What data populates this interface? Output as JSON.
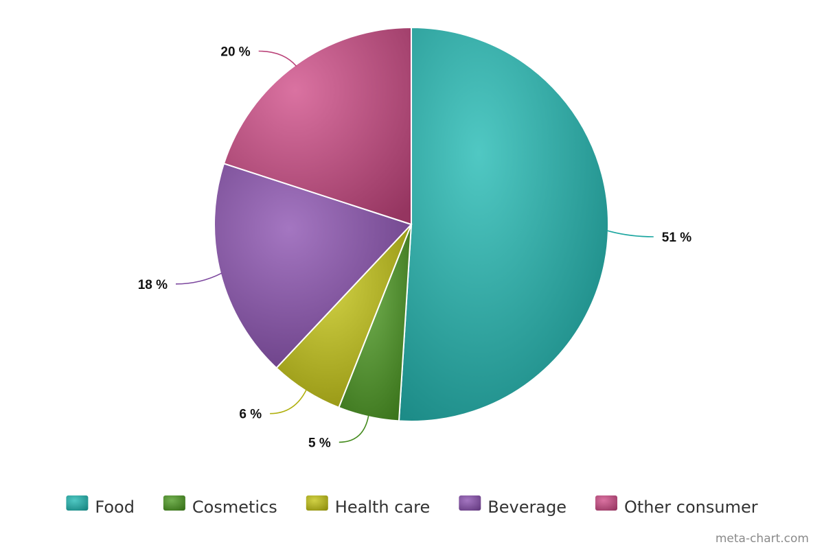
{
  "chart_data": {
    "type": "pie",
    "title": "",
    "categories": [
      "Food",
      "Cosmetics",
      "Health care",
      "Beverage",
      "Other consumer"
    ],
    "values": [
      51,
      5,
      6,
      18,
      20
    ],
    "value_labels": [
      "51 %",
      "5 %",
      "6 %",
      "18 %",
      "20 %"
    ],
    "colors": [
      "#1fb8b2",
      "#4b9a20",
      "#c4c410",
      "#8a4fb0",
      "#cf4a86"
    ],
    "start": "12 o'clock",
    "direction": "clockwise",
    "legend_position": "bottom"
  },
  "watermark": "meta-chart.com"
}
